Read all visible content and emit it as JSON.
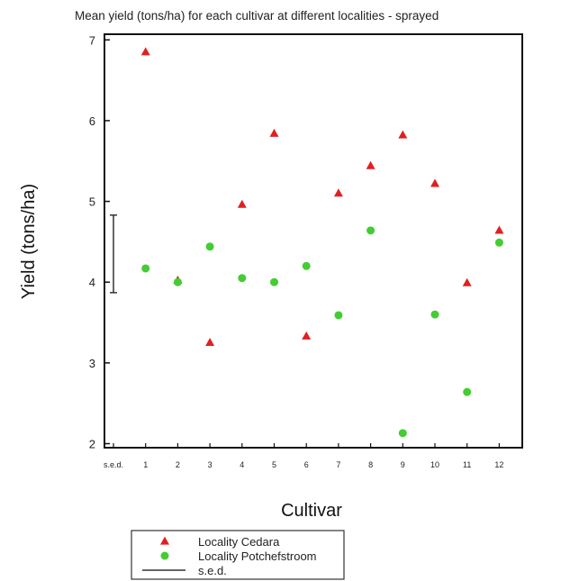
{
  "chart_data": {
    "type": "scatter",
    "title": "Mean yield (tons/ha) for each cultivar at different localities - sprayed",
    "xlabel": "Cultivar",
    "ylabel": "Yield (tons/ha)",
    "categories": [
      "s.e.d.",
      "1",
      "2",
      "3",
      "4",
      "5",
      "6",
      "7",
      "8",
      "9",
      "10",
      "11",
      "12"
    ],
    "ylim": [
      1.95,
      7.07
    ],
    "yticks": [
      "2",
      "3",
      "4",
      "5",
      "6",
      "7"
    ],
    "grid": false,
    "legend_position": "bottom-left",
    "series": [
      {
        "name": "Locality Cedara",
        "marker": "triangle",
        "color": "#e02020",
        "x": [
          1,
          2,
          3,
          4,
          5,
          6,
          7,
          8,
          9,
          10,
          11,
          12
        ],
        "values": [
          6.85,
          4.02,
          3.25,
          4.96,
          5.84,
          3.33,
          5.1,
          5.44,
          5.82,
          5.22,
          3.99,
          4.64
        ]
      },
      {
        "name": "Locality Potchefstroom",
        "marker": "circle",
        "color": "#44cc33",
        "x": [
          1,
          2,
          3,
          4,
          5,
          6,
          7,
          8,
          9,
          10,
          11,
          12
        ],
        "values": [
          4.17,
          4.0,
          4.44,
          4.05,
          4.0,
          4.2,
          3.59,
          4.64,
          2.13,
          3.6,
          2.64,
          4.49
        ]
      }
    ],
    "sed": {
      "label": "s.e.d.",
      "x": 0,
      "low": 3.87,
      "high": 4.83,
      "color": "#333333"
    }
  }
}
